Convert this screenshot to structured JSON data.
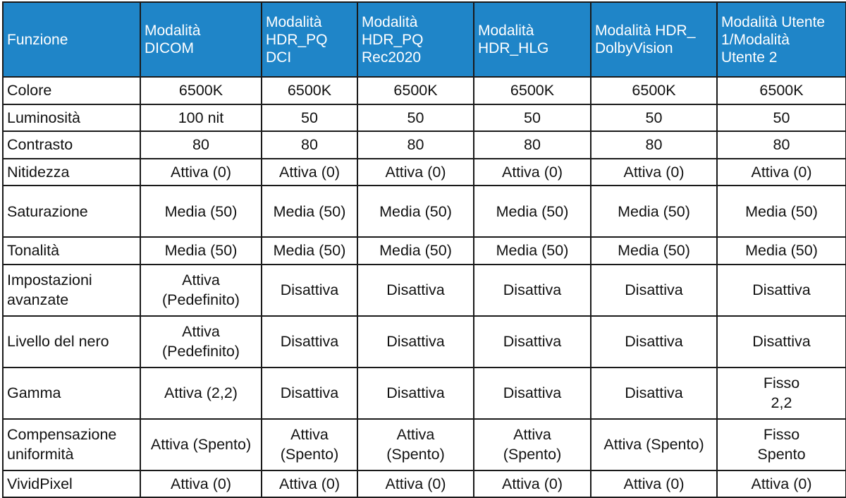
{
  "header": [
    [
      "Funzione"
    ],
    [
      "Modalità",
      "DICOM"
    ],
    [
      "Modalità",
      "HDR_PQ",
      "DCI"
    ],
    [
      "Modalità",
      "HDR_PQ",
      "Rec2020"
    ],
    [
      "Modalità",
      "HDR_HLG"
    ],
    [
      "Modalità HDR_",
      "DolbyVision"
    ],
    [
      "Modalità Utente",
      "1/Modalità",
      "Utente 2"
    ]
  ],
  "rows": [
    {
      "label": [
        "Colore"
      ],
      "cells": [
        [
          "6500K"
        ],
        [
          "6500K"
        ],
        [
          "6500K"
        ],
        [
          "6500K"
        ],
        [
          "6500K"
        ],
        [
          "6500K"
        ]
      ]
    },
    {
      "label": [
        "Luminosità"
      ],
      "cells": [
        [
          "100 nit"
        ],
        [
          "50"
        ],
        [
          "50"
        ],
        [
          "50"
        ],
        [
          "50"
        ],
        [
          "50"
        ]
      ]
    },
    {
      "label": [
        "Contrasto"
      ],
      "cells": [
        [
          "80"
        ],
        [
          "80"
        ],
        [
          "80"
        ],
        [
          "80"
        ],
        [
          "80"
        ],
        [
          "80"
        ]
      ]
    },
    {
      "label": [
        "Nitidezza"
      ],
      "cells": [
        [
          "Attiva (0)"
        ],
        [
          "Attiva (0)"
        ],
        [
          "Attiva (0)"
        ],
        [
          "Attiva (0)"
        ],
        [
          "Attiva (0)"
        ],
        [
          "Attiva (0)"
        ]
      ]
    },
    {
      "label": [
        "Saturazione"
      ],
      "cells": [
        [
          "Media (50)"
        ],
        [
          "Media (50)"
        ],
        [
          "Media (50)"
        ],
        [
          "Media (50)"
        ],
        [
          "Media (50)"
        ],
        [
          "Media (50)"
        ]
      ]
    },
    {
      "label": [
        "Tonalità"
      ],
      "cells": [
        [
          "Media (50)"
        ],
        [
          "Media (50)"
        ],
        [
          "Media (50)"
        ],
        [
          "Media (50)"
        ],
        [
          "Media (50)"
        ],
        [
          "Media (50)"
        ]
      ]
    },
    {
      "label": [
        "Impostazioni",
        "avanzate"
      ],
      "cells": [
        [
          "Attiva",
          "(Pedefinito)"
        ],
        [
          "Disattiva"
        ],
        [
          "Disattiva"
        ],
        [
          "Disattiva"
        ],
        [
          "Disattiva"
        ],
        [
          "Disattiva"
        ]
      ]
    },
    {
      "label": [
        "Livello del nero"
      ],
      "cells": [
        [
          "Attiva",
          "(Pedefinito)"
        ],
        [
          "Disattiva"
        ],
        [
          "Disattiva"
        ],
        [
          "Disattiva"
        ],
        [
          "Disattiva"
        ],
        [
          "Disattiva"
        ]
      ]
    },
    {
      "label": [
        "Gamma"
      ],
      "cells": [
        [
          "Attiva (2,2)"
        ],
        [
          "Disattiva"
        ],
        [
          "Disattiva"
        ],
        [
          "Disattiva"
        ],
        [
          "Disattiva"
        ],
        [
          "Fisso",
          "2,2"
        ]
      ]
    },
    {
      "label": [
        "Compensazione",
        "uniformità"
      ],
      "cells": [
        [
          "Attiva (Spento)"
        ],
        [
          "Attiva",
          "(Spento)"
        ],
        [
          "Attiva",
          "(Spento)"
        ],
        [
          "Attiva",
          "(Spento)"
        ],
        [
          "Attiva (Spento)"
        ],
        [
          "Fisso",
          "Spento"
        ]
      ]
    },
    {
      "label": [
        "VividPixel"
      ],
      "cells": [
        [
          "Attiva (0)"
        ],
        [
          "Attiva (0)"
        ],
        [
          "Attiva (0)"
        ],
        [
          "Attiva (0)"
        ],
        [
          "Attiva (0)"
        ],
        [
          "Attiva (0)"
        ]
      ]
    }
  ],
  "colors": {
    "header_bg": "#1f85c8",
    "header_text": "#ffffff",
    "border": "#1a1a1a"
  }
}
